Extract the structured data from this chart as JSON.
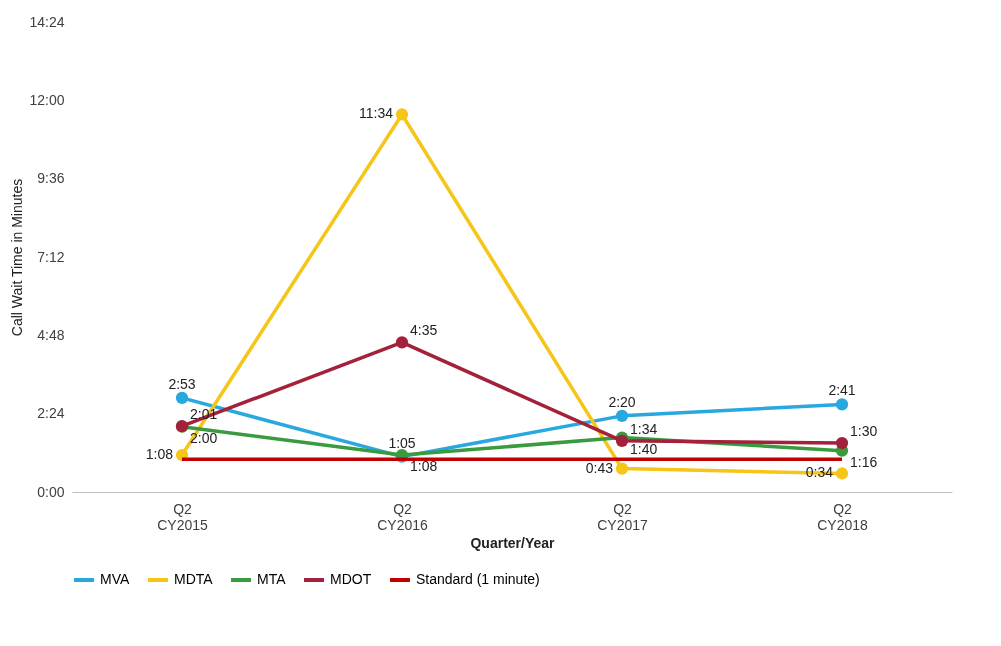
{
  "chart_data": {
    "type": "line",
    "xlabel": "Quarter/Year",
    "ylabel": "Call Wait Time in Minutes",
    "categories": [
      "Q2\nCY2015",
      "Q2\nCY2016",
      "Q2\nCY2017",
      "Q2\nCY2018"
    ],
    "ylim": [
      0,
      14.4
    ],
    "yticks": [
      {
        "value": 0,
        "label": "0:00"
      },
      {
        "value": 2.4,
        "label": "2:24"
      },
      {
        "value": 4.8,
        "label": "4:48"
      },
      {
        "value": 7.2,
        "label": "7:12"
      },
      {
        "value": 9.6,
        "label": "9:36"
      },
      {
        "value": 12,
        "label": "12:00"
      },
      {
        "value": 14.4,
        "label": "14:24"
      }
    ],
    "legend": "bottom",
    "marker": "circle",
    "series": [
      {
        "name": "MVA",
        "color": "#29a8e0",
        "values": [
          2.883,
          1.083,
          2.333,
          2.683
        ],
        "value_labels": [
          "2:53",
          "1:05",
          "2:20",
          "2:41"
        ]
      },
      {
        "name": "MDTA",
        "color": "#f5c518",
        "values": [
          1.133,
          11.567,
          0.717,
          0.567
        ],
        "value_labels": [
          "1:08",
          "11:34",
          "0:43",
          "0:34"
        ]
      },
      {
        "name": "MTA",
        "color": "#3a9a3f",
        "values": [
          2.0,
          1.133,
          1.667,
          1.267
        ],
        "value_labels": [
          "2:00",
          "1:08",
          "1:40",
          "1:16"
        ]
      },
      {
        "name": "MDOT",
        "color": "#a3213a",
        "values": [
          2.017,
          4.583,
          1.567,
          1.5
        ],
        "value_labels": [
          "2:01",
          "4:35",
          "1:34",
          "1:30"
        ]
      },
      {
        "name": "Standard (1 minute)",
        "color": "#c00000",
        "values": [
          1,
          1,
          1,
          1
        ],
        "marker": "none"
      }
    ]
  }
}
